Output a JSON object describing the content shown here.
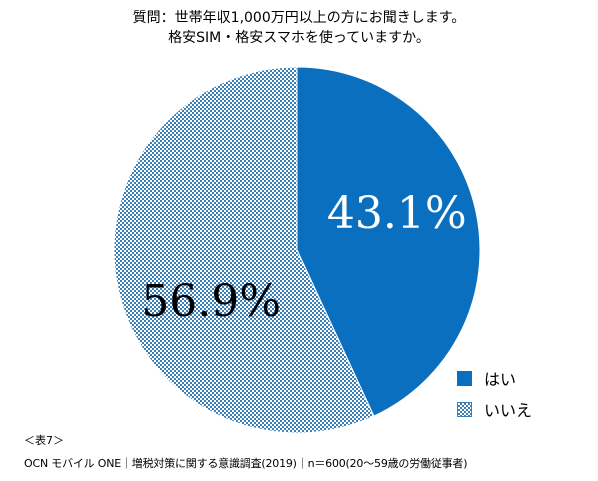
{
  "title_lines": [
    "質問：世帯年収1,000万円以上の方にお聞きします。",
    "格安SIM・格安スマホを使っていますか。"
  ],
  "footnote": "＜表7＞",
  "source": "OCN モバイル ONE｜増税対策に関する意識調査(2019)｜n＝600(20～59歳の労働従事者)",
  "colors": {
    "yes": "#0b6fbf",
    "no_pattern": "#3b7fb8",
    "white_label": "#ffffff",
    "dark_label": "#000000"
  },
  "chart_data": {
    "type": "pie",
    "start_angle_deg": 0,
    "direction": "clockwise",
    "slices": [
      {
        "label": "はい",
        "value": 43.1,
        "display": "43.1%",
        "fill": "solid",
        "color": "#0b6fbf"
      },
      {
        "label": "いいえ",
        "value": 56.9,
        "display": "56.9%",
        "fill": "checkered",
        "color": "#3b7fb8"
      }
    ],
    "legend_position": "bottom-right"
  }
}
